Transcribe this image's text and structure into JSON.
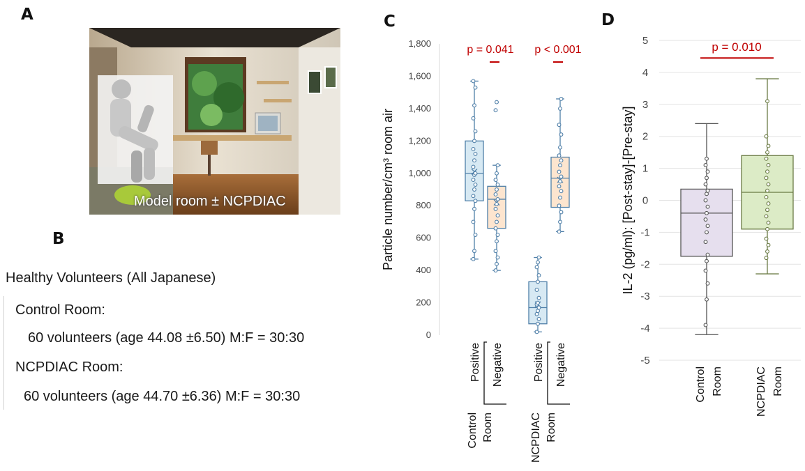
{
  "panels": {
    "a": "A",
    "b": "B",
    "c": "C",
    "d": "D"
  },
  "photo_caption": "Model room ± NCPDIAC",
  "volunteers": {
    "heading": "Healthy Volunteers (All Japanese)",
    "control_label": "Control Room:",
    "control_detail": "60 volunteers (age 44.08 ±6.50) M:F = 30:30",
    "ncpdiac_label": "NCPDIAC  Room:",
    "ncpdiac_detail": "60 volunteers (age 44.70 ±6.36) M:F = 30:30"
  },
  "colors": {
    "blue_box_fill": "#d7e9f3",
    "blue_line": "#4f7fa8",
    "orange_box_fill": "#fde5cf",
    "purple_box_fill": "#e6dfee",
    "green_box_fill": "#dcebc6",
    "significance": "#c00000",
    "grid": "#e3e3e3"
  },
  "chart_data": [
    {
      "type": "box",
      "panel": "C",
      "ylabel": "Particle number/cm³ room air",
      "ylim": [
        0,
        1800
      ],
      "yticks": [
        "0",
        "200",
        "400",
        "600",
        "800",
        "1,000",
        "1,200",
        "1,400",
        "1,600",
        "1,800"
      ],
      "groups": [
        {
          "room_line1": "Control",
          "room_line2": "Room",
          "boxes": [
            {
              "label": "Positive",
              "color": "blue",
              "min": 470,
              "q1": 830,
              "median": 1000,
              "q3": 1200,
              "max": 1570,
              "mean": 1010,
              "points": [
                470,
                520,
                620,
                700,
                780,
                830,
                860,
                900,
                930,
                960,
                990,
                1000,
                1040,
                1080,
                1120,
                1150,
                1200,
                1260,
                1340,
                1420,
                1530,
                1570
              ]
            },
            {
              "label": "Negative",
              "color": "orange",
              "min": 400,
              "q1": 660,
              "median": 840,
              "q3": 920,
              "max": 1050,
              "mean": 820,
              "points": [
                400,
                440,
                480,
                520,
                580,
                620,
                660,
                700,
                740,
                780,
                810,
                840,
                870,
                900,
                930,
                960,
                1000,
                1050,
                1390,
                1440
              ]
            }
          ],
          "p_value": "p = 0.041"
        },
        {
          "room_line1": "NCPDIAC",
          "room_line2": "Room",
          "boxes": [
            {
              "label": "Positive",
              "color": "blue",
              "min": 20,
              "q1": 70,
              "median": 170,
              "q3": 330,
              "max": 480,
              "mean": 190,
              "points": [
                20,
                70,
                100,
                130,
                150,
                170,
                190,
                200,
                230,
                280,
                330,
                370,
                420,
                450,
                480
              ]
            },
            {
              "label": "Negative",
              "color": "orange",
              "min": 640,
              "q1": 790,
              "median": 970,
              "q3": 1100,
              "max": 1460,
              "mean": 960,
              "points": [
                640,
                700,
                760,
                800,
                850,
                890,
                920,
                950,
                980,
                1010,
                1050,
                1080,
                1110,
                1160,
                1240,
                1300,
                1400,
                1460
              ]
            }
          ],
          "p_value": "p < 0.001"
        }
      ]
    },
    {
      "type": "box",
      "panel": "D",
      "ylabel": "IL-2 (pg/ml):  [Post-stay]-[Pre-stay]",
      "ylim": [
        -5,
        5
      ],
      "yticks": [
        "-5",
        "-4",
        "-3",
        "-2",
        "-1",
        "0",
        "1",
        "2",
        "3",
        "4",
        "5"
      ],
      "boxes": [
        {
          "line1": "Control",
          "line2": "Room",
          "color": "purple",
          "min": -4.2,
          "q1": -1.75,
          "median": -0.4,
          "q3": 0.35,
          "max": 2.4,
          "points": [
            -3.9,
            -3.1,
            -2.6,
            -2.2,
            -1.9,
            -1.7,
            -1.3,
            -1.0,
            -0.8,
            -0.6,
            -0.4,
            -0.2,
            0.0,
            0.2,
            0.3,
            0.5,
            0.7,
            0.9,
            1.1,
            1.3
          ]
        },
        {
          "line1": "NCPDIAC",
          "line2": "Room",
          "color": "green",
          "min": -2.3,
          "q1": -0.9,
          "median": 0.25,
          "q3": 1.4,
          "max": 3.8,
          "points": [
            -1.8,
            -1.6,
            -1.4,
            -1.2,
            -0.9,
            -0.7,
            -0.5,
            -0.3,
            -0.1,
            0.1,
            0.3,
            0.5,
            0.7,
            0.9,
            1.1,
            1.3,
            1.5,
            1.7,
            2.0,
            3.1
          ]
        }
      ],
      "p_value": "p = 0.010"
    }
  ]
}
